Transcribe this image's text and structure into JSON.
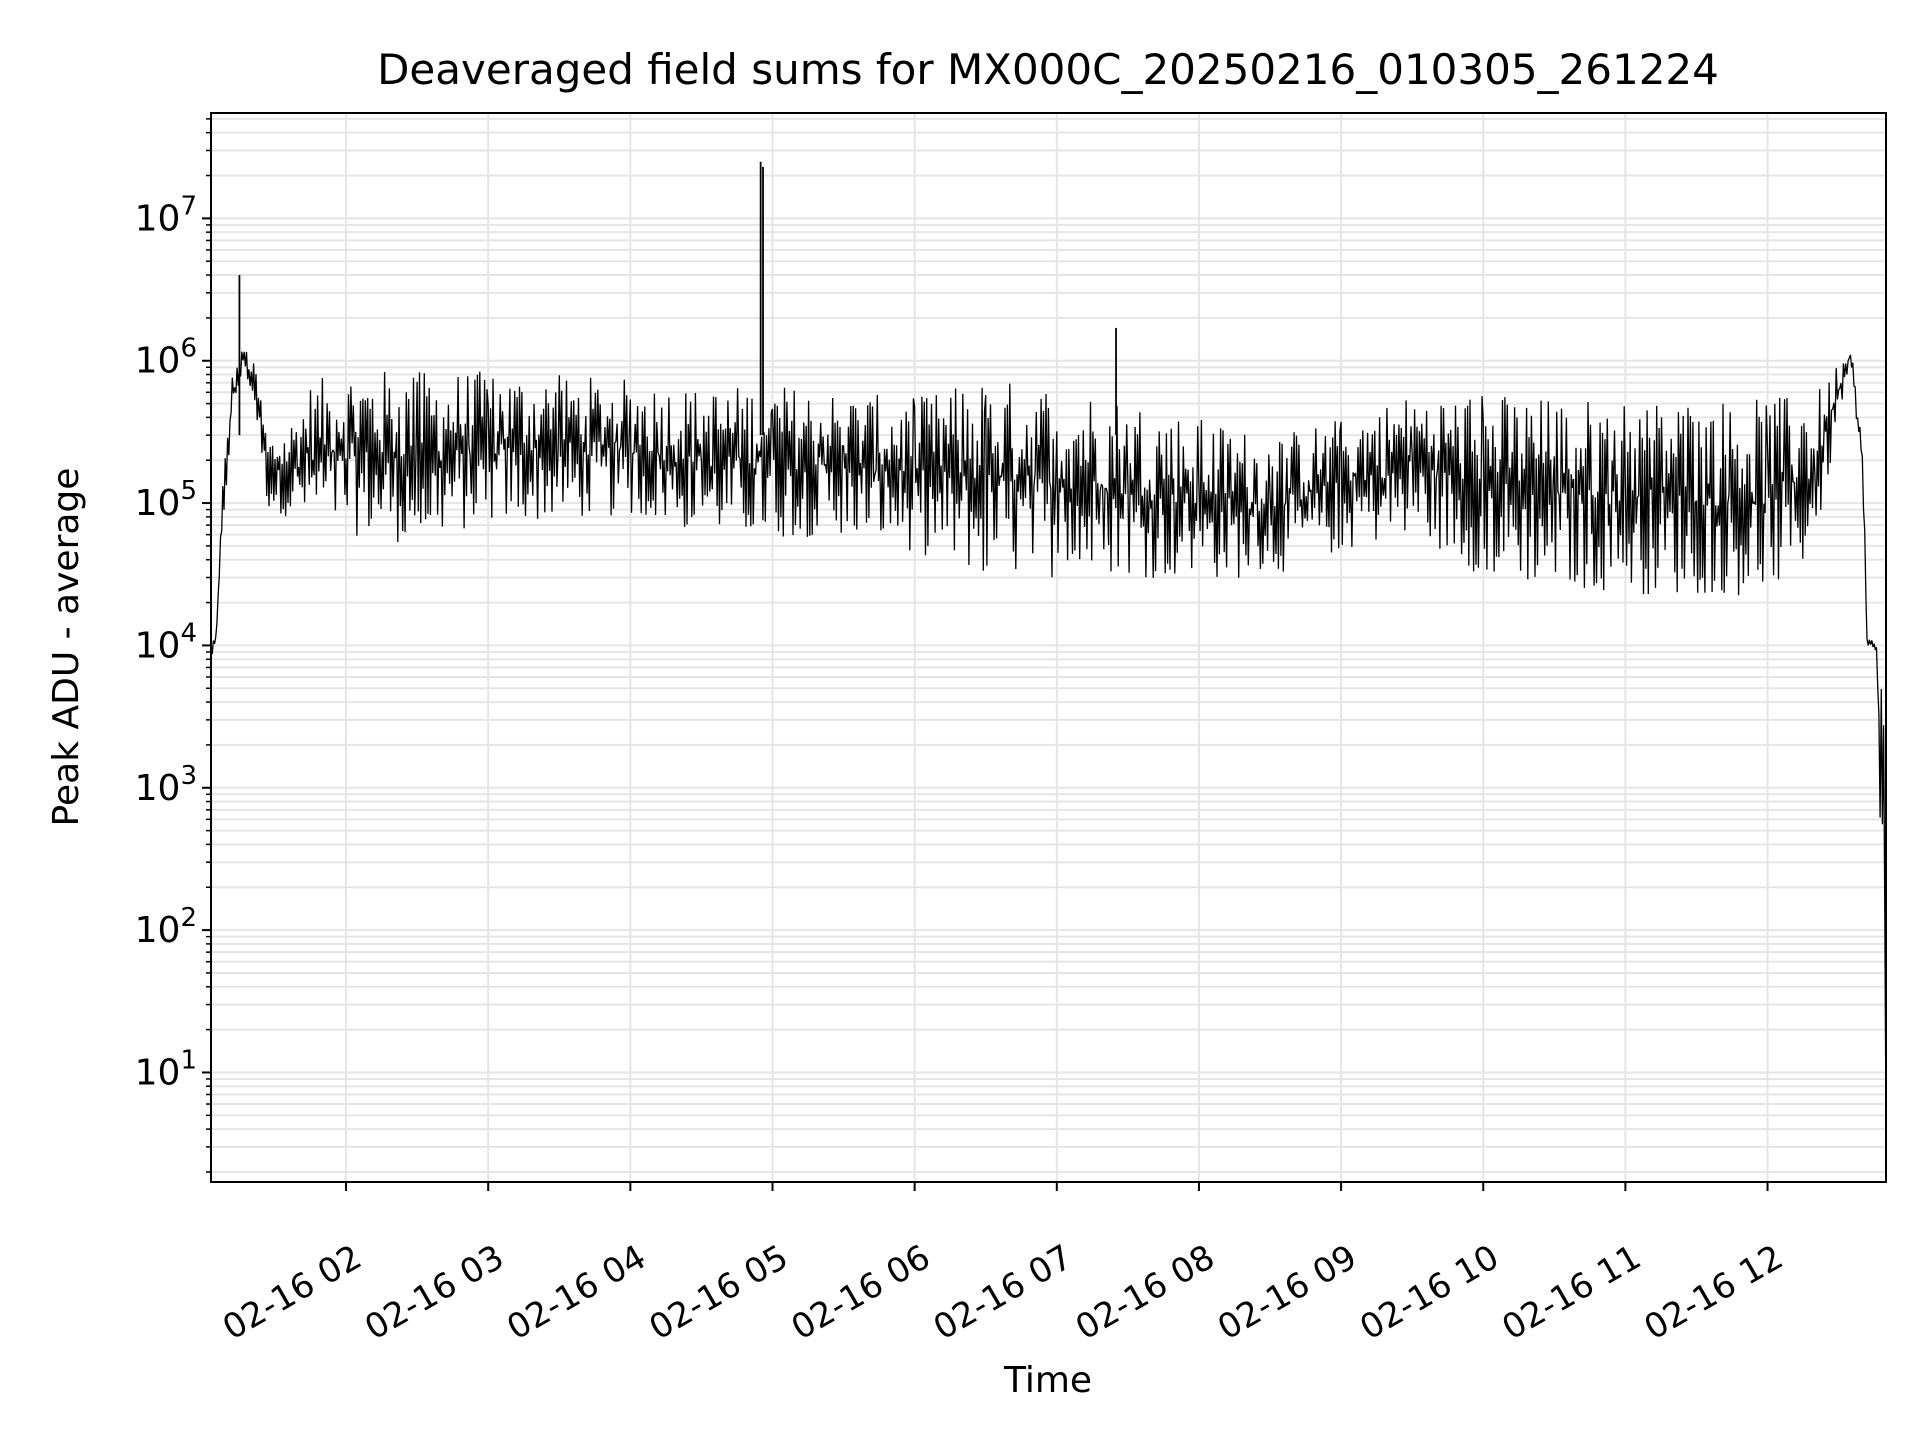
{
  "chart_data": {
    "type": "line",
    "title": "Deaveraged field sums for MX000C_20250216_010305_261224",
    "xlabel": "Time",
    "ylabel": "Peak ADU - average",
    "xlim": [
      "2025-02-16T01:03:00",
      "2025-02-16T12:50:00"
    ],
    "ylim": [
      1.7,
      55000000
    ],
    "yscale": "log",
    "grid": true,
    "line_color": "#000000",
    "grid_color": "#e5e5e5",
    "x_ticks": [
      {
        "time": "2025-02-16T02:00",
        "label": "02-16 02"
      },
      {
        "time": "2025-02-16T03:00",
        "label": "02-16 03"
      },
      {
        "time": "2025-02-16T04:00",
        "label": "02-16 04"
      },
      {
        "time": "2025-02-16T05:00",
        "label": "02-16 05"
      },
      {
        "time": "2025-02-16T06:00",
        "label": "02-16 06"
      },
      {
        "time": "2025-02-16T07:00",
        "label": "02-16 07"
      },
      {
        "time": "2025-02-16T08:00",
        "label": "02-16 08"
      },
      {
        "time": "2025-02-16T09:00",
        "label": "02-16 09"
      },
      {
        "time": "2025-02-16T10:00",
        "label": "02-16 10"
      },
      {
        "time": "2025-02-16T11:00",
        "label": "02-16 11"
      },
      {
        "time": "2025-02-16T12:00",
        "label": "02-16 12"
      }
    ],
    "y_ticks": [
      {
        "value": 10,
        "base": "10",
        "exp": "1"
      },
      {
        "value": 100,
        "base": "10",
        "exp": "2"
      },
      {
        "value": 1000,
        "base": "10",
        "exp": "3"
      },
      {
        "value": 10000,
        "base": "10",
        "exp": "4"
      },
      {
        "value": 100000,
        "base": "10",
        "exp": "5"
      },
      {
        "value": 1000000,
        "base": "10",
        "exp": "6"
      },
      {
        "value": 10000000,
        "base": "10",
        "exp": "7"
      }
    ],
    "series": [
      {
        "envelope": [
          {
            "t": "2025-02-16T01:03",
            "low": 8000,
            "high": 11000
          },
          {
            "t": "2025-02-16T01:05",
            "low": 9000,
            "high": 12000
          },
          {
            "t": "2025-02-16T01:08",
            "low": 60000,
            "high": 150000
          },
          {
            "t": "2025-02-16T01:12",
            "low": 400000,
            "high": 800000
          },
          {
            "t": "2025-02-16T01:17",
            "low": 900000,
            "high": 1300000
          },
          {
            "t": "2025-02-16T01:22",
            "low": 400000,
            "high": 900000
          },
          {
            "t": "2025-02-16T01:27",
            "low": 90000,
            "high": 300000
          },
          {
            "t": "2025-02-16T01:35",
            "low": 80000,
            "high": 350000
          },
          {
            "t": "2025-02-16T01:45",
            "low": 70000,
            "high": 700000
          },
          {
            "t": "2025-02-16T02:00",
            "low": 60000,
            "high": 900000
          },
          {
            "t": "2025-02-16T02:30",
            "low": 50000,
            "high": 850000
          },
          {
            "t": "2025-02-16T03:00",
            "low": 70000,
            "high": 850000
          },
          {
            "t": "2025-02-16T03:30",
            "low": 75000,
            "high": 800000
          },
          {
            "t": "2025-02-16T04:00",
            "low": 80000,
            "high": 750000
          },
          {
            "t": "2025-02-16T04:30",
            "low": 60000,
            "high": 650000
          },
          {
            "t": "2025-02-16T05:00",
            "low": 55000,
            "high": 700000
          },
          {
            "t": "2025-02-16T05:30",
            "low": 60000,
            "high": 600000
          },
          {
            "t": "2025-02-16T06:00",
            "low": 45000,
            "high": 550000
          },
          {
            "t": "2025-02-16T06:30",
            "low": 30000,
            "high": 750000
          },
          {
            "t": "2025-02-16T07:00",
            "low": 30000,
            "high": 700000
          },
          {
            "t": "2025-02-16T07:30",
            "low": 30000,
            "high": 550000
          },
          {
            "t": "2025-02-16T08:00",
            "low": 28000,
            "high": 400000
          },
          {
            "t": "2025-02-16T08:30",
            "low": 30000,
            "high": 300000
          },
          {
            "t": "2025-02-16T09:00",
            "low": 45000,
            "high": 400000
          },
          {
            "t": "2025-02-16T09:30",
            "low": 60000,
            "high": 600000
          },
          {
            "t": "2025-02-16T10:00",
            "low": 30000,
            "high": 600000
          },
          {
            "t": "2025-02-16T10:30",
            "low": 25000,
            "high": 550000
          },
          {
            "t": "2025-02-16T11:00",
            "low": 23000,
            "high": 550000
          },
          {
            "t": "2025-02-16T11:30",
            "low": 22000,
            "high": 550000
          },
          {
            "t": "2025-02-16T12:00",
            "low": 22000,
            "high": 550000
          },
          {
            "t": "2025-02-16T12:20",
            "low": 40000,
            "high": 600000
          },
          {
            "t": "2025-02-16T12:30",
            "low": 400000,
            "high": 1000000
          },
          {
            "t": "2025-02-16T12:35",
            "low": 900000,
            "high": 1300000
          },
          {
            "t": "2025-02-16T12:40",
            "low": 100000,
            "high": 500000
          },
          {
            "t": "2025-02-16T12:42",
            "low": 9500,
            "high": 12000
          },
          {
            "t": "2025-02-16T12:46",
            "low": 9000,
            "high": 10000
          },
          {
            "t": "2025-02-16T12:50",
            "low": 4,
            "high": 9000
          }
        ],
        "spikes": [
          {
            "t": "2025-02-16T01:15",
            "value": 4000000
          },
          {
            "t": "2025-02-16T04:55",
            "value": 25000000
          },
          {
            "t": "2025-02-16T04:56",
            "value": 23000000
          },
          {
            "t": "2025-02-16T07:25",
            "value": 1700000
          }
        ]
      }
    ]
  }
}
